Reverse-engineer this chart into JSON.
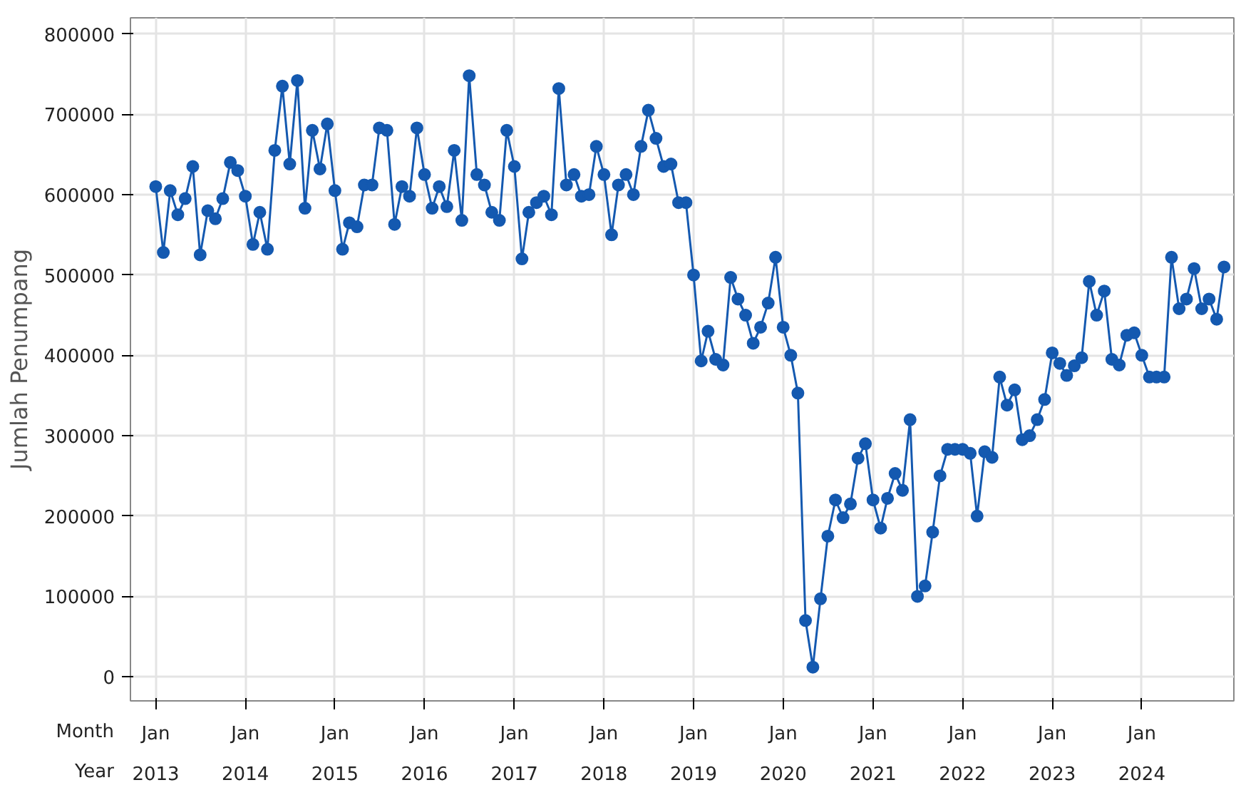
{
  "chart_data": {
    "type": "line",
    "ylabel": "Jumlah Penumpang",
    "annotations": [
      "Month",
      "Year"
    ],
    "x": [
      "2013-01",
      "2013-02",
      "2013-03",
      "2013-04",
      "2013-05",
      "2013-06",
      "2013-07",
      "2013-08",
      "2013-09",
      "2013-10",
      "2013-11",
      "2013-12",
      "2014-01",
      "2014-02",
      "2014-03",
      "2014-04",
      "2014-05",
      "2014-06",
      "2014-07",
      "2014-08",
      "2014-09",
      "2014-10",
      "2014-11",
      "2014-12",
      "2015-01",
      "2015-02",
      "2015-03",
      "2015-04",
      "2015-05",
      "2015-06",
      "2015-07",
      "2015-08",
      "2015-09",
      "2015-10",
      "2015-11",
      "2015-12",
      "2016-01",
      "2016-02",
      "2016-03",
      "2016-04",
      "2016-05",
      "2016-06",
      "2016-07",
      "2016-08",
      "2016-09",
      "2016-10",
      "2016-11",
      "2016-12",
      "2017-01",
      "2017-02",
      "2017-03",
      "2017-04",
      "2017-05",
      "2017-06",
      "2017-07",
      "2017-08",
      "2017-09",
      "2017-10",
      "2017-11",
      "2017-12",
      "2018-01",
      "2018-02",
      "2018-03",
      "2018-04",
      "2018-05",
      "2018-06",
      "2018-07",
      "2018-08",
      "2018-09",
      "2018-10",
      "2018-11",
      "2018-12",
      "2019-01",
      "2019-02",
      "2019-03",
      "2019-04",
      "2019-05",
      "2019-06",
      "2019-07",
      "2019-08",
      "2019-09",
      "2019-10",
      "2019-11",
      "2019-12",
      "2020-01",
      "2020-02",
      "2020-03",
      "2020-04",
      "2020-05",
      "2020-06",
      "2020-07",
      "2020-08",
      "2020-09",
      "2020-10",
      "2020-11",
      "2020-12",
      "2021-01",
      "2021-02",
      "2021-03",
      "2021-04",
      "2021-05",
      "2021-06",
      "2021-07",
      "2021-08",
      "2021-09",
      "2021-10",
      "2021-11",
      "2021-12",
      "2022-01",
      "2022-02",
      "2022-03",
      "2022-04",
      "2022-05",
      "2022-06",
      "2022-07",
      "2022-08",
      "2022-09",
      "2022-10",
      "2022-11",
      "2022-12",
      "2023-01",
      "2023-02",
      "2023-03",
      "2023-04",
      "2023-05",
      "2023-06",
      "2023-07",
      "2023-08",
      "2023-09",
      "2023-10",
      "2023-11",
      "2023-12",
      "2024-01",
      "2024-02",
      "2024-03",
      "2024-04",
      "2024-05",
      "2024-06",
      "2024-07",
      "2024-08",
      "2024-09",
      "2024-10",
      "2024-11",
      "2024-12"
    ],
    "series": [
      {
        "color": "#1459b0",
        "values": [
          610000,
          528000,
          605000,
          575000,
          595000,
          635000,
          525000,
          580000,
          570000,
          595000,
          640000,
          630000,
          598000,
          538000,
          578000,
          532000,
          655000,
          735000,
          638000,
          742000,
          583000,
          680000,
          632000,
          688000,
          605000,
          532000,
          565000,
          560000,
          612000,
          612000,
          683000,
          680000,
          563000,
          610000,
          598000,
          683000,
          625000,
          583000,
          610000,
          585000,
          655000,
          568000,
          748000,
          625000,
          612000,
          578000,
          568000,
          680000,
          635000,
          520000,
          578000,
          590000,
          598000,
          575000,
          732000,
          612000,
          625000,
          598000,
          600000,
          660000,
          625000,
          550000,
          612000,
          625000,
          600000,
          660000,
          705000,
          670000,
          635000,
          638000,
          590000,
          590000,
          500000,
          393000,
          430000,
          395000,
          388000,
          497000,
          470000,
          450000,
          415000,
          435000,
          465000,
          522000,
          435000,
          400000,
          353000,
          70000,
          12000,
          97000,
          175000,
          220000,
          198000,
          215000,
          272000,
          290000,
          220000,
          185000,
          222000,
          253000,
          232000,
          320000,
          100000,
          113000,
          180000,
          250000,
          283000,
          283000,
          283000,
          278000,
          200000,
          280000,
          273000,
          373000,
          338000,
          357000,
          295000,
          300000,
          320000,
          345000,
          403000,
          390000,
          375000,
          387000,
          397000,
          492000,
          450000,
          480000,
          395000,
          388000,
          425000,
          428000,
          400000,
          373000,
          373000,
          373000,
          522000,
          458000,
          470000,
          508000,
          458000,
          470000,
          445000,
          510000
        ]
      }
    ],
    "xlim": [
      "2012-09-20",
      "2025-01-10"
    ],
    "xticks": [
      {
        "value": "2013-01",
        "label": "Jan\n2013"
      },
      {
        "value": "2014-01",
        "label": "Jan\n2014"
      },
      {
        "value": "2015-01",
        "label": "Jan\n2015"
      },
      {
        "value": "2016-01",
        "label": "Jan\n2016"
      },
      {
        "value": "2017-01",
        "label": "Jan\n2017"
      },
      {
        "value": "2018-01",
        "label": "Jan\n2018"
      },
      {
        "value": "2019-01",
        "label": "Jan\n2019"
      },
      {
        "value": "2020-01",
        "label": "Jan\n2020"
      },
      {
        "value": "2021-01",
        "label": "Jan\n2021"
      },
      {
        "value": "2022-01",
        "label": "Jan\n2022"
      },
      {
        "value": "2023-01",
        "label": "Jan\n2023"
      },
      {
        "value": "2024-01",
        "label": "Jan\n2024"
      }
    ],
    "ylim": [
      -30000,
      820000
    ],
    "yticks": [
      0,
      100000,
      200000,
      300000,
      400000,
      500000,
      600000,
      700000,
      800000
    ],
    "grid": true,
    "marker": "circle",
    "line_style": "solid"
  }
}
